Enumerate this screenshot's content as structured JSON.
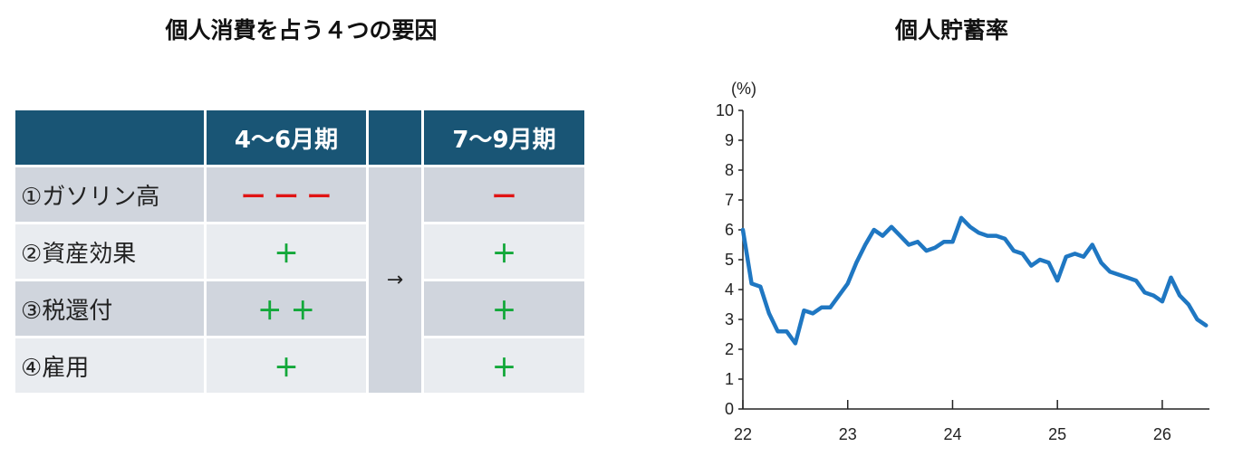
{
  "left_title": "個人消費を占う４つの要因",
  "right_title": "個人貯蓄率",
  "table": {
    "headers": [
      "",
      "4〜6月期",
      "",
      "7〜9月期"
    ],
    "arrow": "→",
    "rows": [
      {
        "factor": "①ガソリン高",
        "q2": "ー ー ー",
        "q2_sign": "neg",
        "q3": "ー",
        "q3_sign": "neg"
      },
      {
        "factor": "②資産効果",
        "q2": "＋",
        "q2_sign": "pos",
        "q3": "＋",
        "q3_sign": "pos"
      },
      {
        "factor": "③税還付",
        "q2": "＋ ＋",
        "q2_sign": "pos",
        "q3": "＋",
        "q3_sign": "pos"
      },
      {
        "factor": "④雇用",
        "q2": "＋",
        "q2_sign": "pos",
        "q3": "＋",
        "q3_sign": "pos"
      }
    ]
  },
  "colors": {
    "header_bg": "#195575",
    "negative": "#e01414",
    "positive": "#13a83a",
    "line": "#1f77c2"
  },
  "chart_data": {
    "type": "line",
    "title": "個人貯蓄率",
    "ylabel": "(%)",
    "xlabel": "",
    "xlim": [
      22,
      26.45
    ],
    "ylim": [
      0,
      10
    ],
    "yticks": [
      "0",
      "1",
      "2",
      "3",
      "4",
      "5",
      "6",
      "7",
      "8",
      "9",
      "10"
    ],
    "xticks": [
      "22",
      "23",
      "24",
      "25",
      "26"
    ],
    "grid": false,
    "series": [
      {
        "name": "",
        "x": [
          22.0,
          22.083,
          22.167,
          22.25,
          22.333,
          22.417,
          22.5,
          22.583,
          22.667,
          22.75,
          22.833,
          22.917,
          23.0,
          23.083,
          23.167,
          23.25,
          23.333,
          23.417,
          23.5,
          23.583,
          23.667,
          23.75,
          23.833,
          23.917,
          24.0,
          24.083,
          24.167,
          24.25,
          24.333,
          24.417,
          24.5,
          24.583,
          24.667,
          24.75,
          24.833,
          24.917,
          25.0,
          25.083,
          25.167,
          25.25,
          25.333,
          25.417,
          25.5,
          25.583,
          25.667,
          25.75,
          25.833,
          25.917,
          26.0,
          26.083,
          26.167,
          26.25,
          26.333,
          26.417
        ],
        "y": [
          6.0,
          4.2,
          4.1,
          3.2,
          2.6,
          2.6,
          2.2,
          3.3,
          3.2,
          3.4,
          3.4,
          3.8,
          4.2,
          4.9,
          5.5,
          6.0,
          5.8,
          6.1,
          5.8,
          5.5,
          5.6,
          5.3,
          5.4,
          5.6,
          5.6,
          6.4,
          6.1,
          5.9,
          5.8,
          5.8,
          5.7,
          5.3,
          5.2,
          4.8,
          5.0,
          4.9,
          4.3,
          5.1,
          5.2,
          5.1,
          5.5,
          4.9,
          4.6,
          4.5,
          4.4,
          4.3,
          3.9,
          3.8,
          3.6,
          4.4,
          3.8,
          3.5,
          3.0,
          2.8
        ]
      }
    ]
  }
}
